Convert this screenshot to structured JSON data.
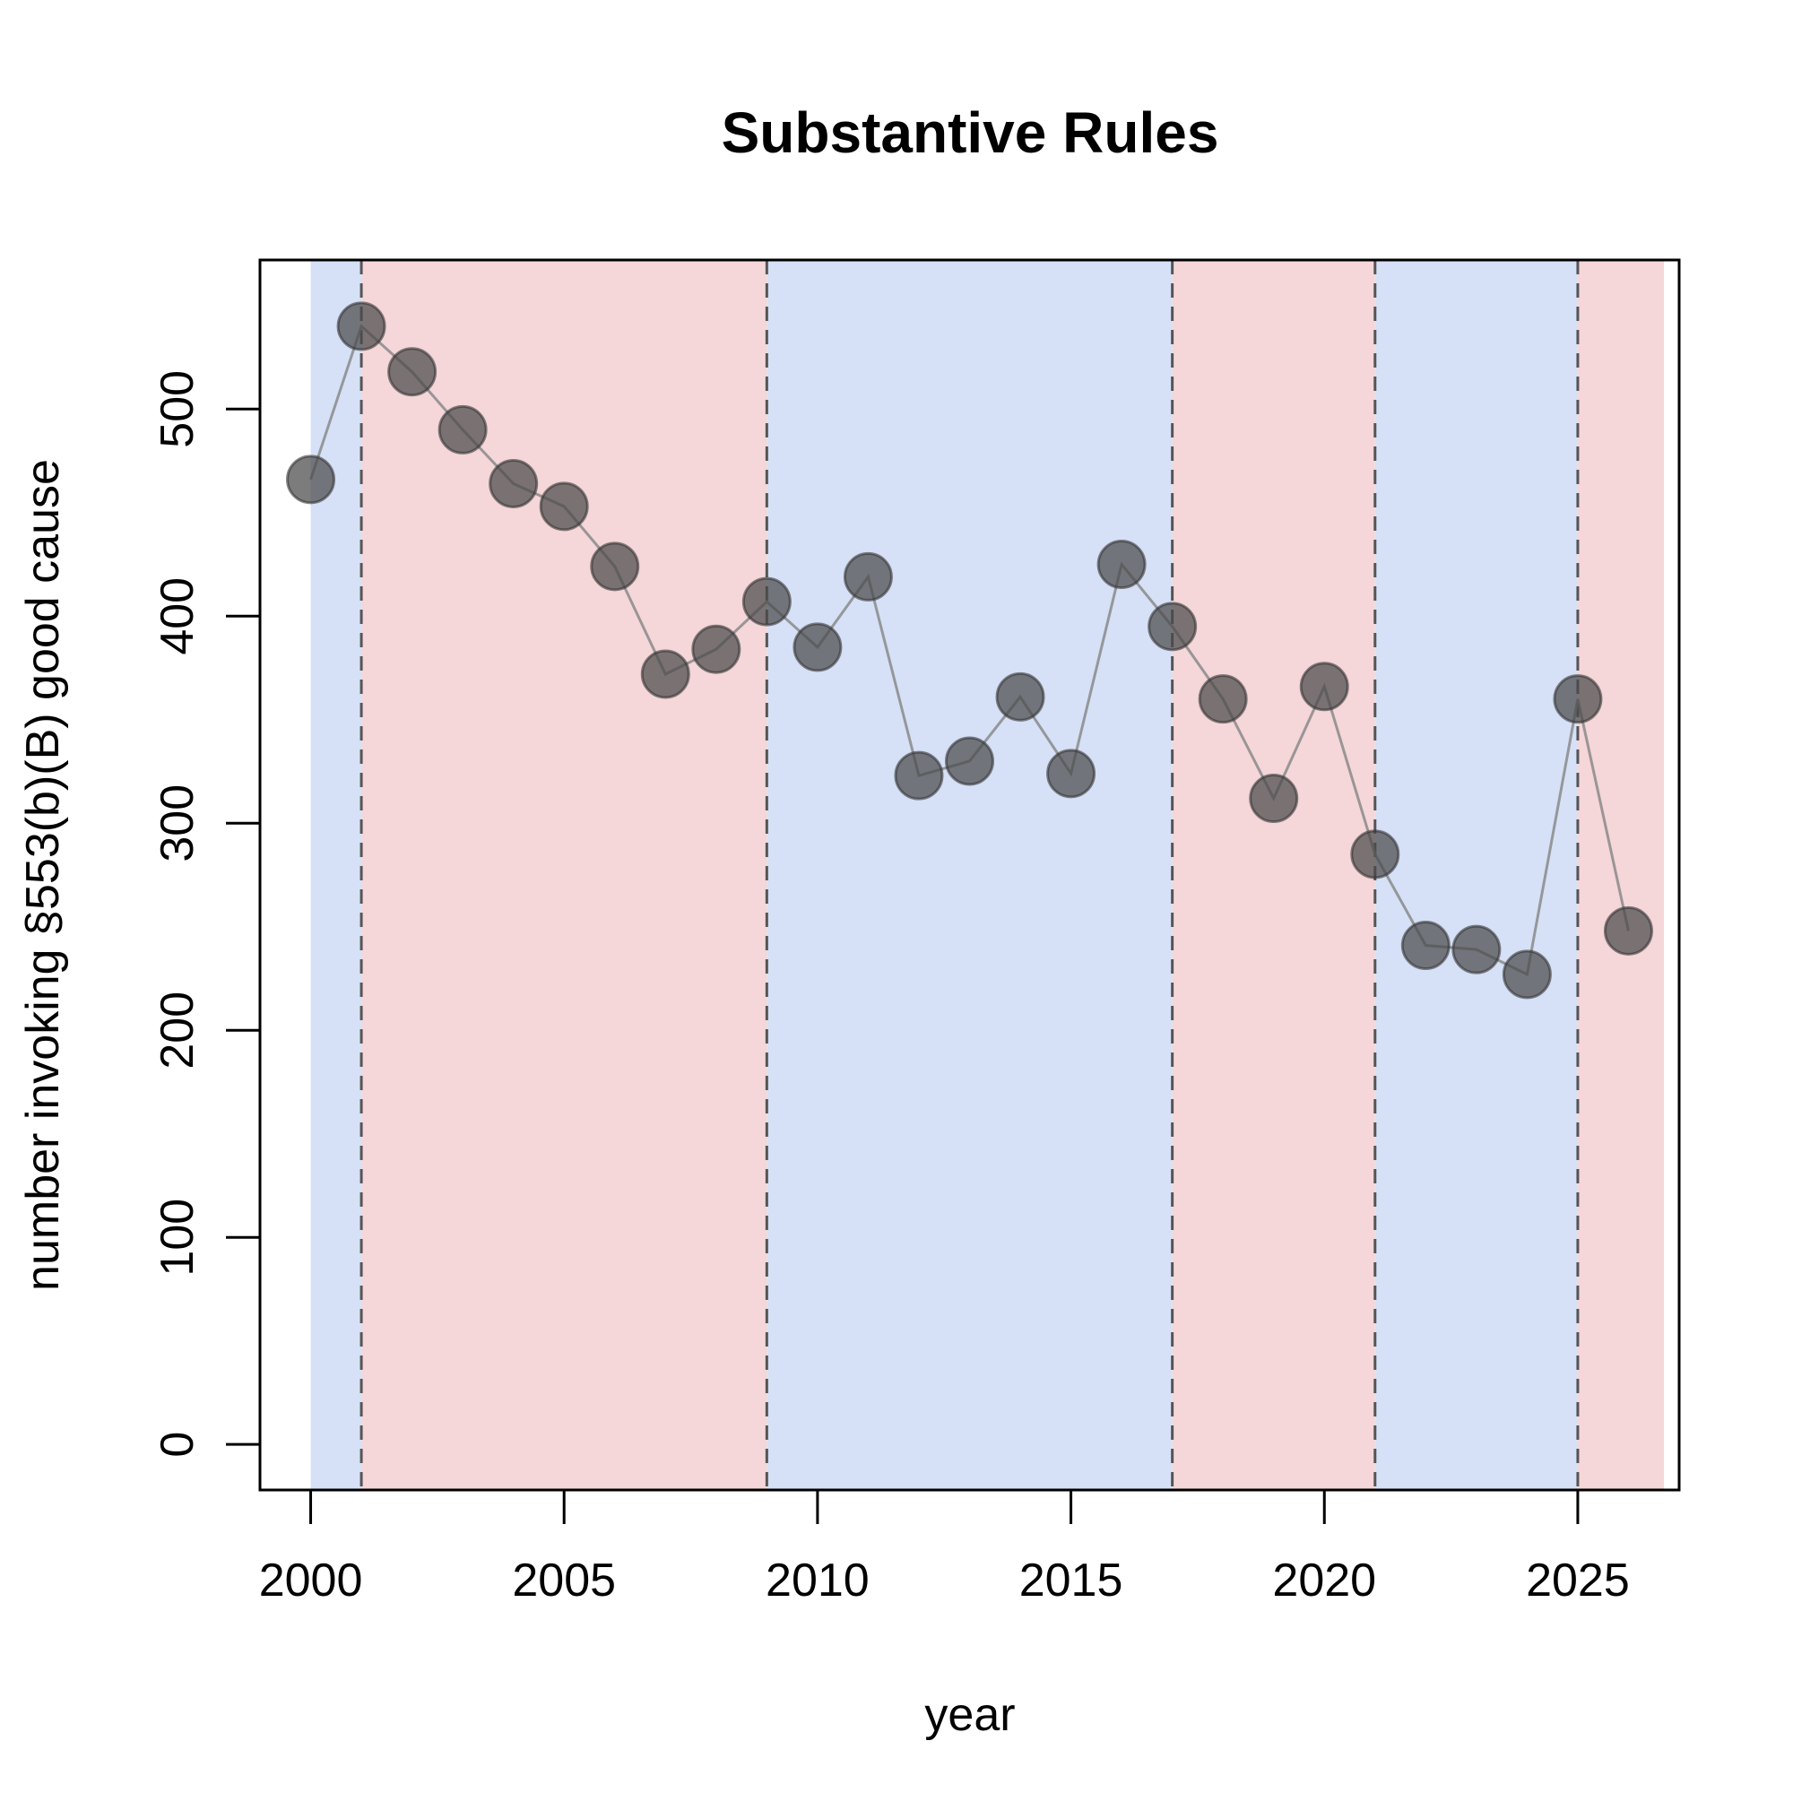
{
  "chart_data": {
    "type": "line",
    "title": "Substantive Rules",
    "xlabel": "year",
    "ylabel": "number invoking §553(b)(B) good cause",
    "xlim": [
      1999.0,
      2027.0
    ],
    "ylim": [
      -22,
      572
    ],
    "x_ticks": [
      2000,
      2005,
      2010,
      2015,
      2020,
      2025
    ],
    "y_ticks": [
      0,
      100,
      200,
      300,
      400,
      500
    ],
    "grid": false,
    "legend": "none",
    "series": [
      {
        "x": [
          2000,
          2001,
          2002,
          2003,
          2004,
          2005,
          2006,
          2007,
          2008,
          2009,
          2010,
          2011,
          2012,
          2013,
          2014,
          2015,
          2016,
          2017,
          2018,
          2019,
          2020,
          2021,
          2022,
          2023,
          2024,
          2025,
          2026
        ],
        "values": [
          466,
          540,
          518,
          490,
          464,
          453,
          424,
          372,
          384,
          407,
          385,
          419,
          323,
          330,
          361,
          324,
          425,
          395,
          360,
          312,
          366,
          285,
          241,
          239,
          227,
          360,
          248
        ]
      }
    ],
    "shaded_periods": [
      {
        "start": 2000,
        "end": 2001,
        "party": "democratic"
      },
      {
        "start": 2001,
        "end": 2009,
        "party": "republican"
      },
      {
        "start": 2009,
        "end": 2017,
        "party": "democratic"
      },
      {
        "start": 2017,
        "end": 2021,
        "party": "republican"
      },
      {
        "start": 2021,
        "end": 2025,
        "party": "democratic"
      },
      {
        "start": 2025,
        "end": 2026.7,
        "party": "republican"
      }
    ],
    "dashed_lines_x": [
      2001,
      2009,
      2017,
      2021,
      2025
    ],
    "colors": {
      "democratic": "#d6e1f7",
      "republican": "#f5d6d9",
      "point_fill": "#4a4a4a",
      "point_opacity": 0.72,
      "line": "#8a8a8a",
      "dashed": "#555555"
    }
  }
}
